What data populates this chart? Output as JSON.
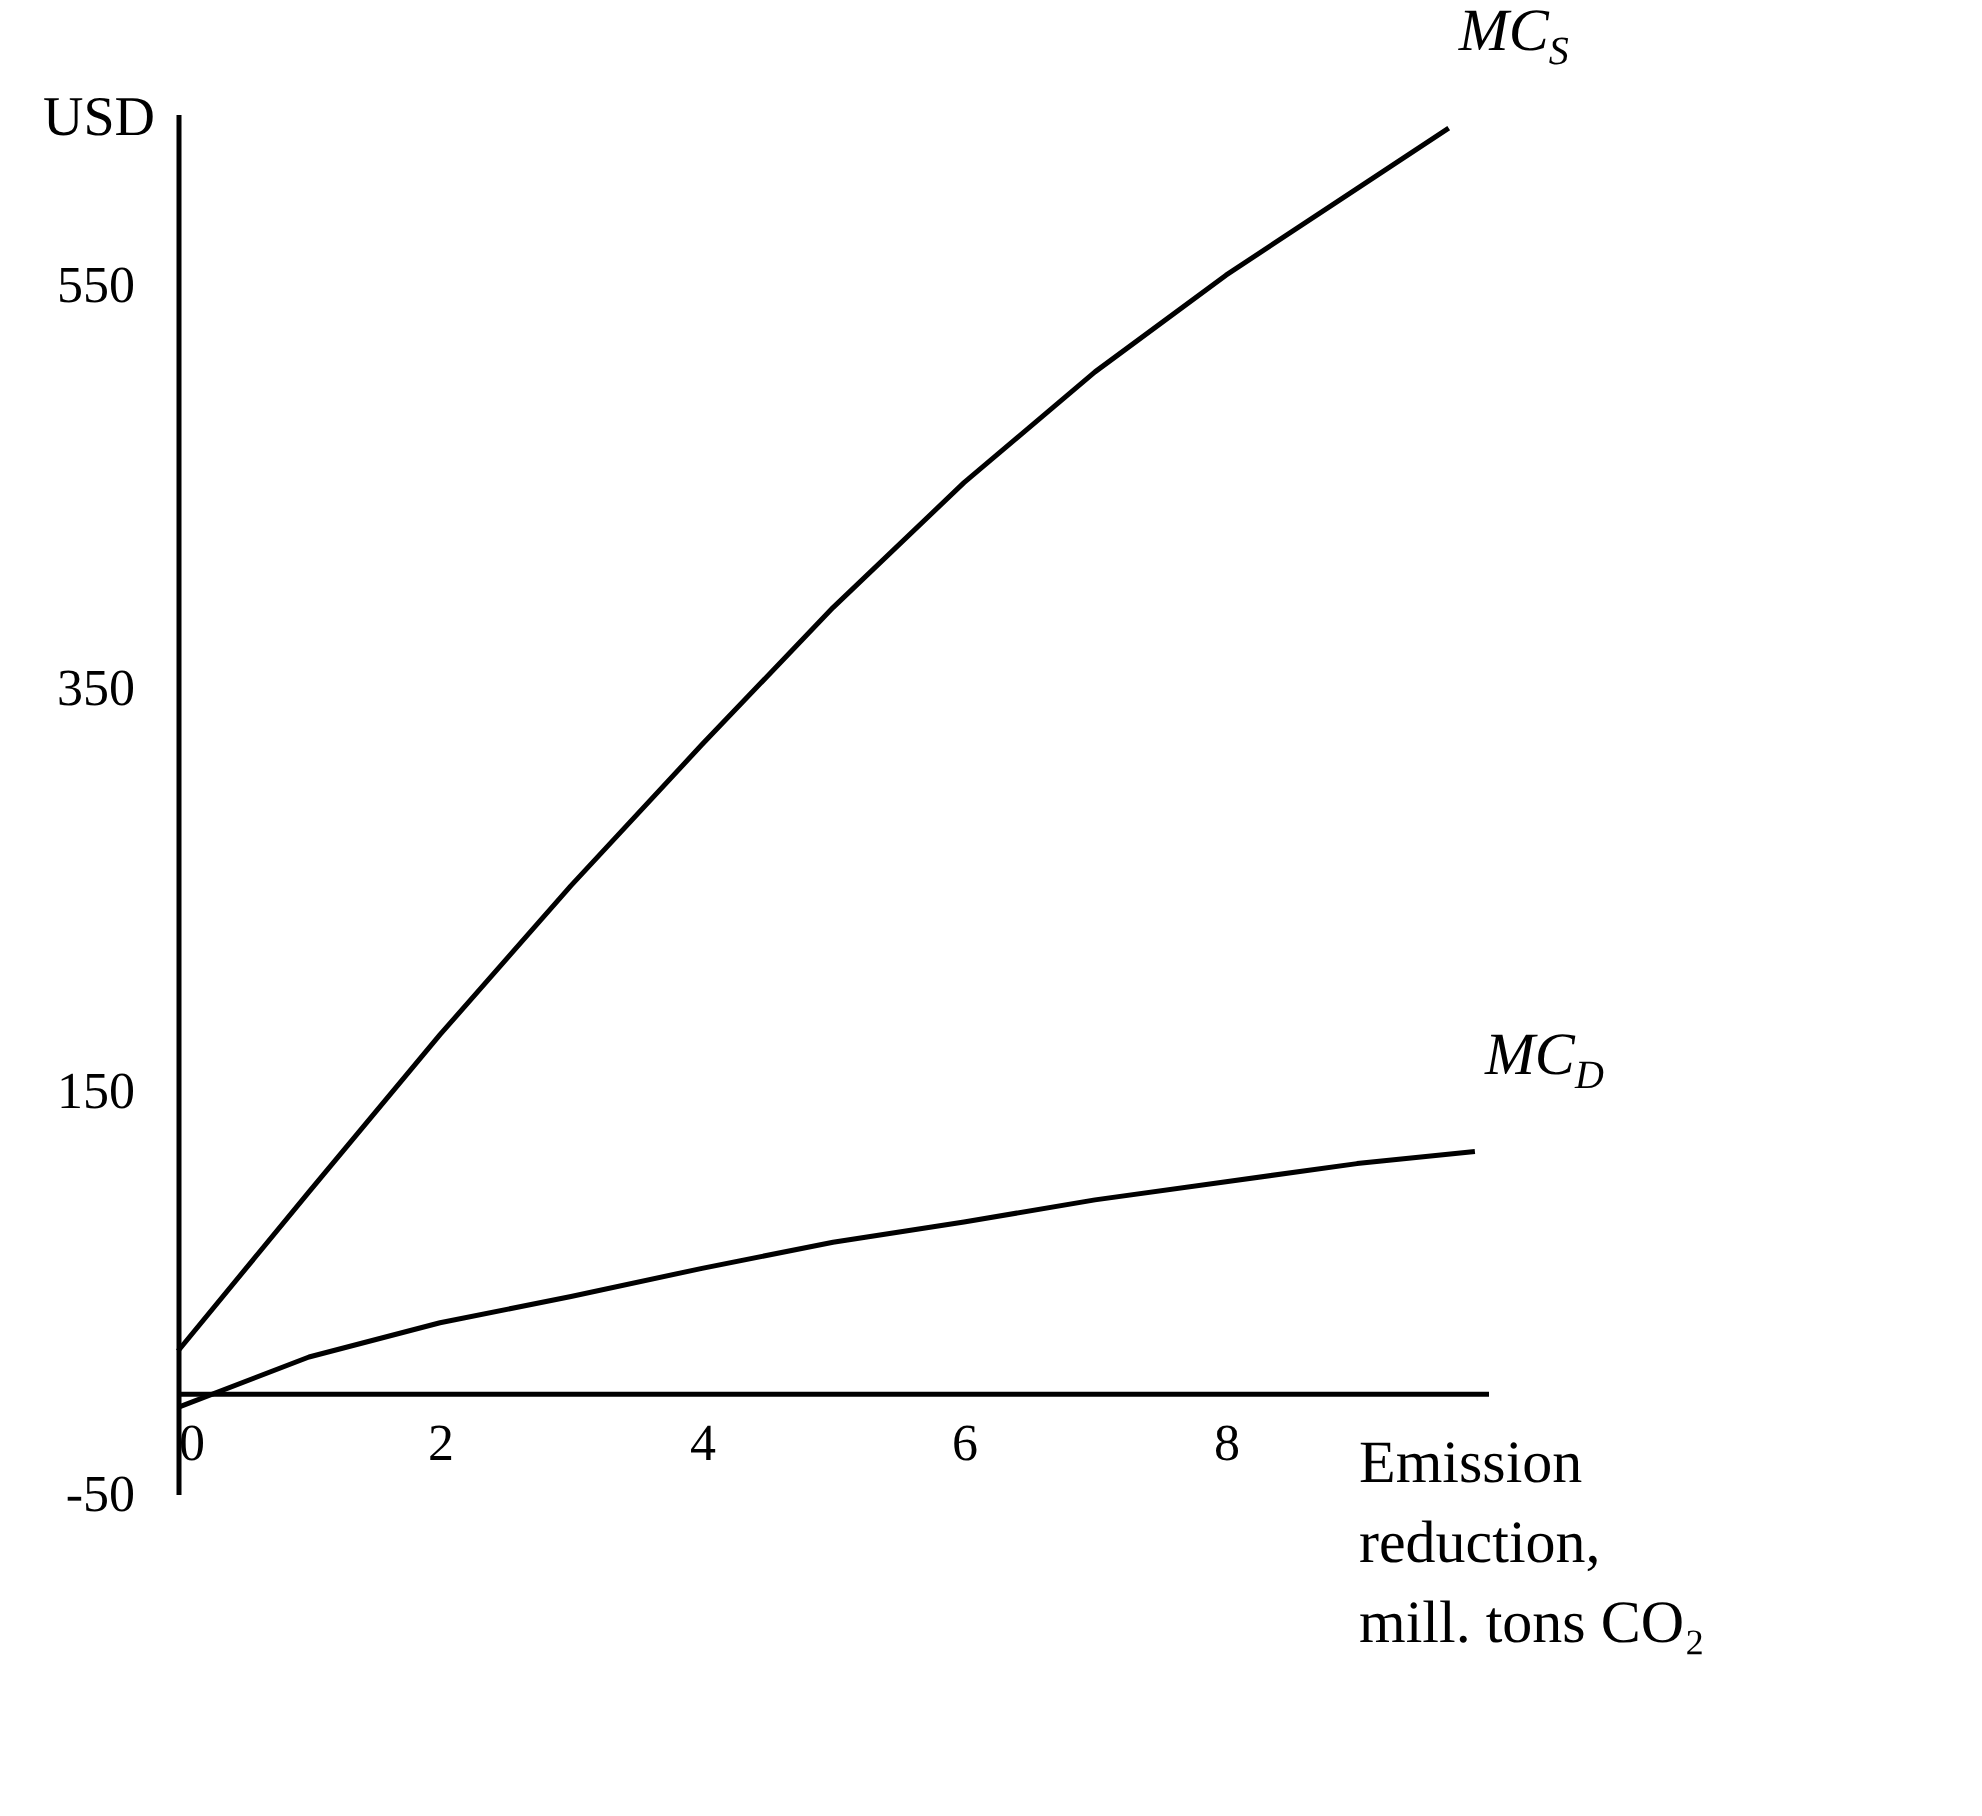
{
  "chart_data": {
    "type": "line",
    "ylabel": "USD",
    "xlabel": "Emission reduction, mill. tons CO₂",
    "xlim": [
      0,
      10
    ],
    "ylim": [
      -50,
      635
    ],
    "xticks": [
      0,
      2,
      4,
      6,
      8
    ],
    "yticks": [
      -50,
      150,
      350,
      550
    ],
    "line_style": "solid",
    "series": [
      {
        "name": "MC$_{S}$",
        "color": "#000000",
        "x": [
          0,
          1,
          2,
          3,
          4,
          5,
          6,
          7,
          8,
          9,
          9.7
        ],
        "values": [
          21,
          100,
          178,
          252,
          322,
          390,
          452,
          507,
          555,
          598,
          628
        ]
      },
      {
        "name": "MC$_{D}$",
        "color": "#000000",
        "x": [
          0,
          1,
          2,
          3,
          4,
          5,
          6,
          7,
          8,
          9,
          9.9
        ],
        "values": [
          -7,
          18,
          35,
          48,
          62,
          75,
          85,
          96,
          105,
          114,
          120
        ]
      }
    ]
  }
}
